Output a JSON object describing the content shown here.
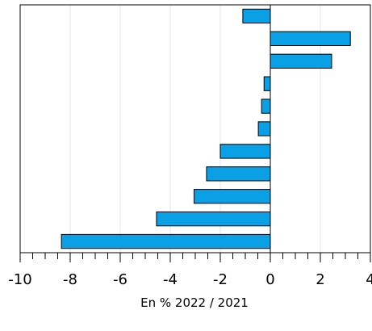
{
  "chart_data": {
    "type": "bar",
    "orientation": "horizontal",
    "categories": [
      "",
      "",
      "",
      "",
      "",
      "",
      "",
      "",
      "",
      "",
      ""
    ],
    "values": [
      -1.1,
      3.2,
      2.45,
      -0.25,
      -0.35,
      -0.48,
      -2.0,
      -2.55,
      -3.05,
      -4.55,
      -8.35
    ],
    "xlim": [
      -10,
      4
    ],
    "x_major_ticks": [
      -10,
      -8,
      -6,
      -4,
      -2,
      0,
      2,
      4
    ],
    "x_tick_labels": [
      "-10",
      "-8",
      "-6",
      "-4",
      "-2",
      "0",
      "2",
      "4"
    ],
    "xlabel": "En % 2022 / 2021",
    "ylabel": "",
    "title": "",
    "grid": "vertical",
    "bar_color": "#0aa0e6",
    "bar_edge_color": "#000000"
  }
}
